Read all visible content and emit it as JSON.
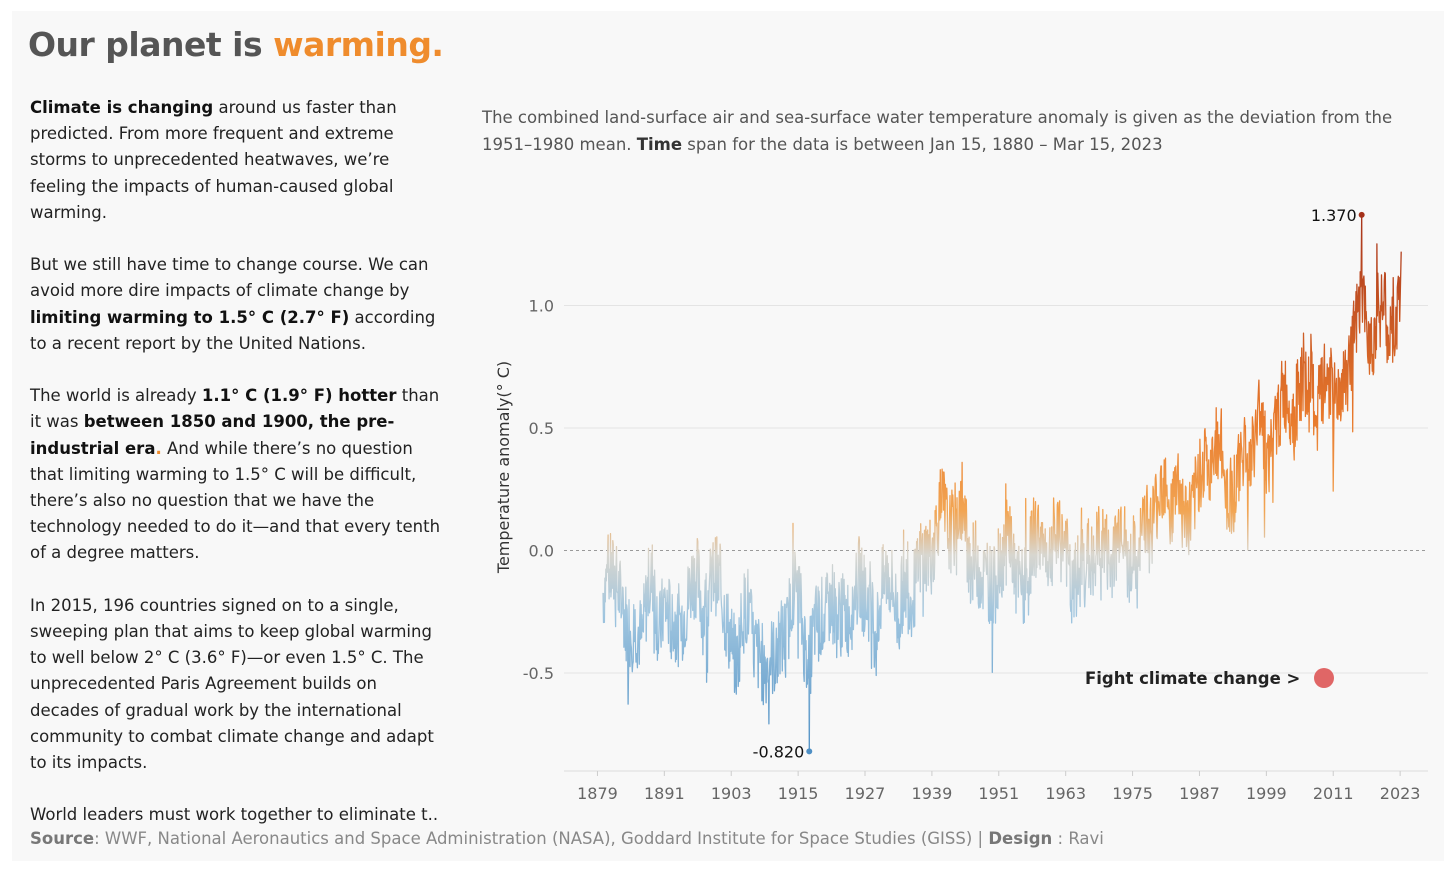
{
  "title": {
    "lead": "Our planet is ",
    "accent": "warming."
  },
  "narrative": {
    "p1": {
      "b1": "Climate is changing",
      "t1": " around us faster than predicted. From more frequent and extreme storms to unprecedented heatwaves, we’re feeling the impacts of human-caused global warming."
    },
    "p2": {
      "t1": "But we still have time to change course. We can avoid more dire impacts of climate change by ",
      "b1": "limiting warming to 1.5° C (2.7° F)",
      "t2": " according to a recent report by the United Nations."
    },
    "p3": {
      "t1": "The world is already ",
      "b1": "1.1° C (1.9° F) hotter",
      "t2": " than it was ",
      "b2": "between 1850 and 1900, the pre-industrial era",
      "dot": ".",
      "t3": " And while there’s no question that limiting warming to 1.5° C will be difficult, there’s also no question that we have the technology needed to do it—and that every tenth of a degree matters."
    },
    "p4": {
      "t1": "In 2015, 196 countries signed on to a single, sweeping plan that aims to keep global warming to well below 2° C (3.6° F)—or even 1.5° C. The unprecedented Paris Agreement builds on decades of gradual work by the international community to combat climate change and adapt to its impacts."
    },
    "p5": {
      "t1": "World leaders must work together to eliminate t.."
    }
  },
  "subtitle": {
    "t1": "The combined land-surface air and sea-surface water temperature anomaly is given as the deviation from the 1951–1980 mean. ",
    "b1": "Time",
    "t2": " span for the data is between Jan 15, 1880 – Mar 15, 2023"
  },
  "cta": {
    "label": "Fight climate change >",
    "dot_color": "#e06666"
  },
  "source": {
    "b1": "Source",
    "t1": ": WWF, National Aeronautics and Space Administration (NASA), Goddard Institute for Space Studies (GISS) | ",
    "b2": "Design",
    "t2": " : Ravi"
  },
  "chart_data": {
    "type": "line",
    "ylabel": "Temperature anomaly(° C)",
    "xlabel": "",
    "xlim": [
      1873,
      2028
    ],
    "ylim": [
      -0.9,
      1.5
    ],
    "xticks": [
      "1879",
      "1891",
      "1903",
      "1915",
      "1927",
      "1939",
      "1951",
      "1963",
      "1975",
      "1987",
      "1999",
      "2011",
      "2023"
    ],
    "yticks": [
      "1.0",
      "0.5",
      "0.0",
      "-0.5"
    ],
    "ytick_values": [
      1.0,
      0.5,
      0.0,
      -0.5
    ],
    "reference_line": 0.0,
    "annotations": [
      {
        "label": "1.370",
        "x": 2016.1,
        "y": 1.37
      },
      {
        "label": "-0.820",
        "x": 1917.0,
        "y": -0.82
      }
    ],
    "colors": {
      "cold": "#4e8fc4",
      "neutral": "#d8d6cf",
      "warm": "#f2a553",
      "hot": "#a5311a"
    },
    "series": [
      {
        "x": [
          1880,
          1881,
          1882,
          1883,
          1884,
          1885,
          1886,
          1887,
          1888,
          1889,
          1890,
          1891,
          1892,
          1893,
          1894,
          1895,
          1896,
          1897,
          1898,
          1899,
          1900,
          1901,
          1902,
          1903,
          1904,
          1905,
          1906,
          1907,
          1908,
          1909,
          1910,
          1911,
          1912,
          1913,
          1914,
          1915,
          1916,
          1917,
          1918,
          1919,
          1920,
          1921,
          1922,
          1923,
          1924,
          1925,
          1926,
          1927,
          1928,
          1929,
          1930,
          1931,
          1932,
          1933,
          1934,
          1935,
          1936,
          1937,
          1938,
          1939,
          1940,
          1941,
          1942,
          1943,
          1944,
          1945,
          1946,
          1947,
          1948,
          1949,
          1950,
          1951,
          1952,
          1953,
          1954,
          1955,
          1956,
          1957,
          1958,
          1959,
          1960,
          1961,
          1962,
          1963,
          1964,
          1965,
          1966,
          1967,
          1968,
          1969,
          1970,
          1971,
          1972,
          1973,
          1974,
          1975,
          1976,
          1977,
          1978,
          1979,
          1980,
          1981,
          1982,
          1983,
          1984,
          1985,
          1986,
          1987,
          1988,
          1989,
          1990,
          1991,
          1992,
          1993,
          1994,
          1995,
          1996,
          1997,
          1998,
          1999,
          2000,
          2001,
          2002,
          2003,
          2004,
          2005,
          2006,
          2007,
          2008,
          2009,
          2010,
          2011,
          2012,
          2013,
          2014,
          2015,
          2016,
          2017,
          2018,
          2019,
          2020,
          2021,
          2022,
          2023
        ],
        "y": [
          -0.17,
          -0.09,
          -0.11,
          -0.18,
          -0.28,
          -0.33,
          -0.31,
          -0.36,
          -0.17,
          -0.1,
          -0.35,
          -0.22,
          -0.27,
          -0.31,
          -0.3,
          -0.23,
          -0.11,
          -0.11,
          -0.27,
          -0.17,
          -0.08,
          -0.15,
          -0.28,
          -0.37,
          -0.47,
          -0.26,
          -0.22,
          -0.39,
          -0.43,
          -0.48,
          -0.43,
          -0.44,
          -0.36,
          -0.34,
          -0.15,
          -0.14,
          -0.36,
          -0.46,
          -0.3,
          -0.27,
          -0.27,
          -0.19,
          -0.28,
          -0.26,
          -0.27,
          -0.22,
          -0.1,
          -0.22,
          -0.2,
          -0.36,
          -0.16,
          -0.09,
          -0.16,
          -0.29,
          -0.12,
          -0.2,
          -0.15,
          -0.03,
          -0.01,
          -0.02,
          0.13,
          0.19,
          0.07,
          0.09,
          0.2,
          0.09,
          -0.07,
          -0.03,
          -0.11,
          -0.11,
          -0.17,
          -0.07,
          0.01,
          0.08,
          -0.13,
          -0.14,
          -0.19,
          0.05,
          0.06,
          0.03,
          -0.03,
          0.06,
          0.03,
          0.05,
          -0.2,
          -0.11,
          -0.06,
          -0.02,
          -0.08,
          0.05,
          0.03,
          -0.08,
          0.01,
          0.16,
          -0.07,
          -0.01,
          -0.1,
          0.18,
          0.07,
          0.16,
          0.26,
          0.32,
          0.14,
          0.31,
          0.16,
          0.12,
          0.18,
          0.33,
          0.39,
          0.27,
          0.45,
          0.41,
          0.22,
          0.23,
          0.31,
          0.45,
          0.33,
          0.46,
          0.61,
          0.38,
          0.39,
          0.54,
          0.63,
          0.62,
          0.53,
          0.68,
          0.64,
          0.66,
          0.54,
          0.65,
          0.72,
          0.61,
          0.65,
          0.68,
          0.75,
          0.9,
          1.01,
          0.92,
          0.85,
          0.98,
          1.02,
          0.85,
          0.89,
          1.02
        ]
      }
    ]
  }
}
